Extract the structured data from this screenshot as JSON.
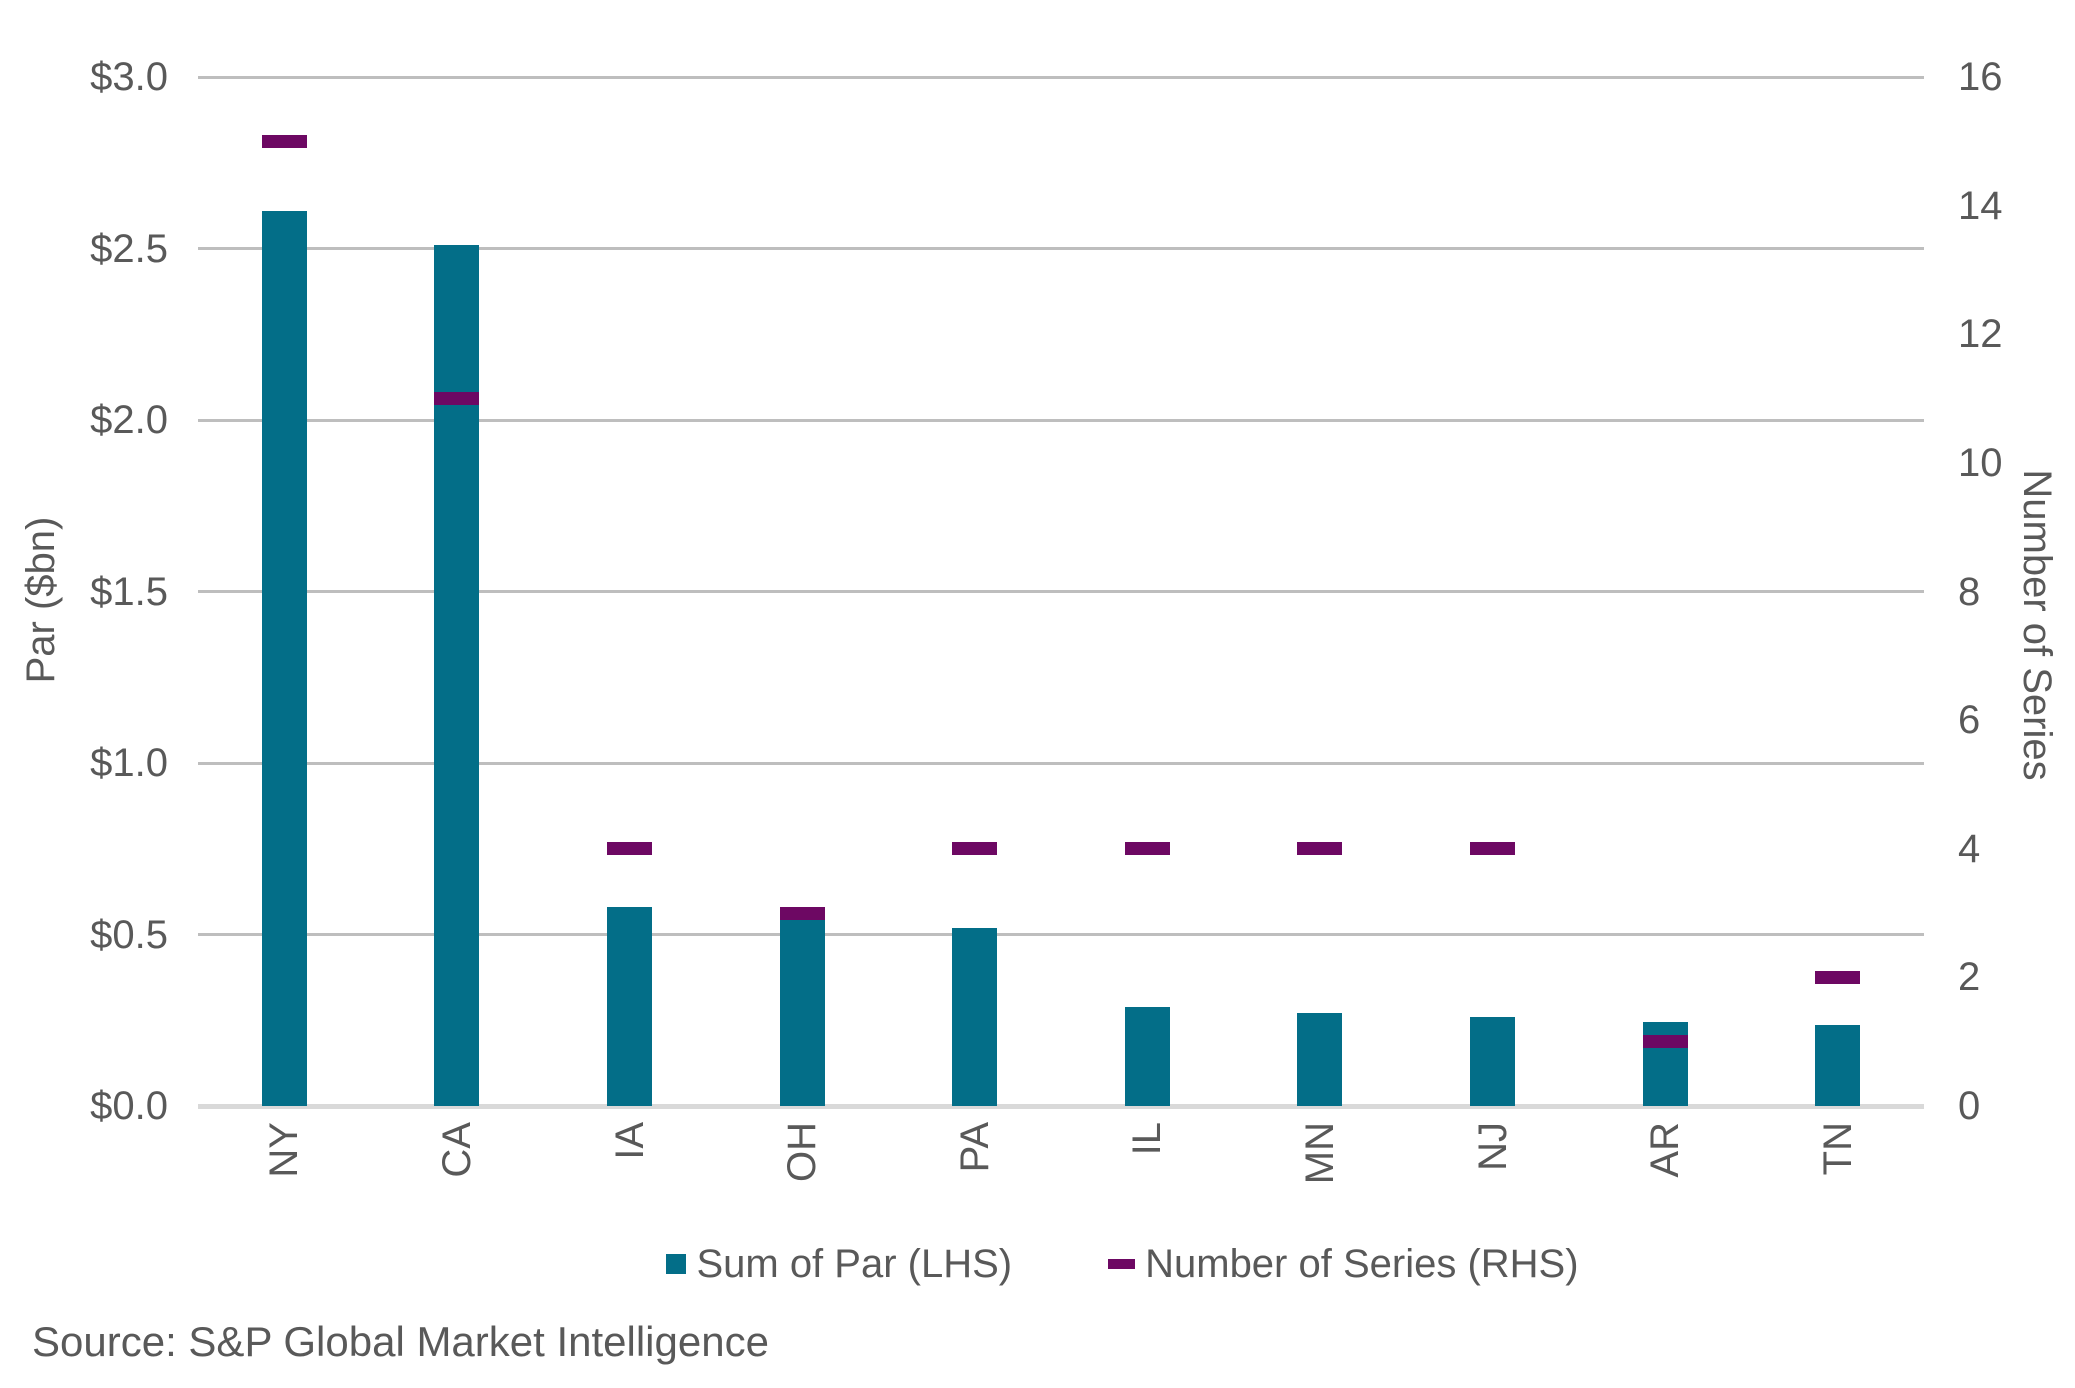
{
  "chart_data": {
    "type": "bar",
    "title": "",
    "categories": [
      "NY",
      "CA",
      "IA",
      "OH",
      "PA",
      "IL",
      "MN",
      "NJ",
      "AR",
      "TN"
    ],
    "series": [
      {
        "name": "Sum of Par (LHS)",
        "type": "bar",
        "axis": "left",
        "color": "#036E88",
        "values": [
          2.61,
          2.51,
          0.58,
          0.55,
          0.52,
          0.29,
          0.27,
          0.26,
          0.245,
          0.235
        ]
      },
      {
        "name": "Number of Series (RHS)",
        "type": "dash",
        "axis": "right",
        "color": "#6D0863",
        "values": [
          15,
          11,
          4,
          3,
          4,
          4,
          4,
          4,
          1,
          2
        ]
      }
    ],
    "left_axis": {
      "title": "Par ($bn)",
      "min": 0,
      "max": 3,
      "tick_step": 0.5,
      "tick_labels": [
        "$0.0",
        "$0.5",
        "$1.0",
        "$1.5",
        "$2.0",
        "$2.5",
        "$3.0"
      ]
    },
    "right_axis": {
      "title": "Number of Series",
      "min": 0,
      "max": 16,
      "tick_step": 2,
      "tick_labels": [
        "0",
        "2",
        "4",
        "6",
        "8",
        "10",
        "12",
        "14",
        "16"
      ]
    },
    "grid": "horizontal",
    "legend_position": "bottom"
  },
  "legend": {
    "items": [
      {
        "label": "Sum of Par (LHS)",
        "marker": "square",
        "color": "#036E88"
      },
      {
        "label": "Number of Series (RHS)",
        "marker": "dash",
        "color": "#6D0863"
      }
    ]
  },
  "footer": {
    "source": "Source: S&P Global Market Intelligence"
  },
  "styles": {
    "text_color": "#595959",
    "gridline_color": "#BEBEBE",
    "baseline_color": "#D9D9D9",
    "background": "#FFFFFF"
  }
}
